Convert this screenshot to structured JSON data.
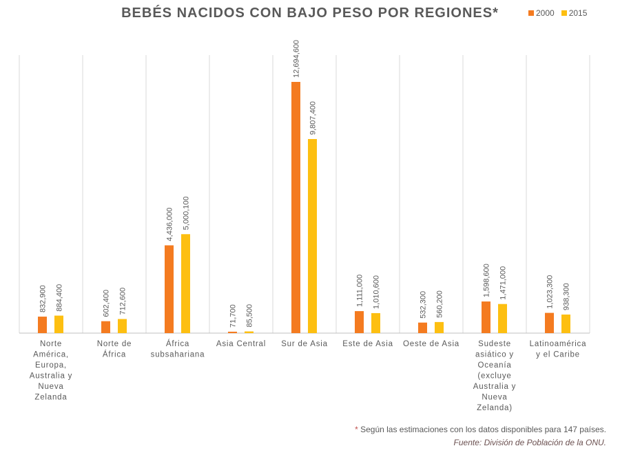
{
  "chart_data": {
    "type": "bar",
    "title": "BEBÉS NACIDOS CON BAJO PESO POR REGIONES*",
    "categories": [
      [
        "Norte",
        "América,",
        "Europa,",
        "Australia y",
        "Nueva",
        "Zelanda"
      ],
      [
        "Norte de",
        "África"
      ],
      [
        "África",
        "subsahariana"
      ],
      [
        "Asia Central"
      ],
      [
        "Sur de Asia"
      ],
      [
        "Este de Asia"
      ],
      [
        "Oeste de Asia"
      ],
      [
        "Sudeste",
        "asiático y",
        "Oceanía",
        "(excluye",
        "Australia y",
        "Nueva",
        "Zelanda)"
      ],
      [
        "Latinoamérica",
        "y el Caribe"
      ]
    ],
    "series": [
      {
        "name": "2000",
        "color": "#f47b20",
        "values": [
          832900,
          602400,
          4436000,
          71700,
          12694600,
          1111000,
          532300,
          1598600,
          1023300
        ],
        "labels": [
          "832,900",
          "602,400",
          "4,436,000",
          "71,700",
          "12,694,600",
          "1,111,000",
          "532,300",
          "1,598,600",
          "1,023,300"
        ]
      },
      {
        "name": "2015",
        "color": "#fdbf11",
        "values": [
          884400,
          712600,
          5000100,
          85500,
          9807400,
          1010600,
          560200,
          1471000,
          938300
        ],
        "labels": [
          "884,400",
          "712,600",
          "5,000,100",
          "85,500",
          "9,807,400",
          "1,010,600",
          "560,200",
          "1,471,000",
          "938,300"
        ]
      }
    ],
    "ylim": [
      0,
      13000000
    ],
    "grid": "vertical category separators",
    "legend": "top-right"
  },
  "footnote": {
    "asterisk": "*",
    "text": " Según las estimaciones con los datos disponibles para 147 países."
  },
  "source": "Fuente: División de Población de la ONU."
}
